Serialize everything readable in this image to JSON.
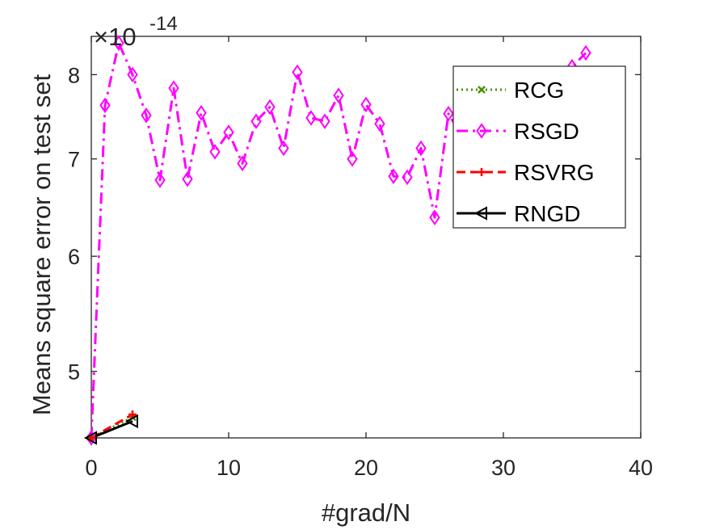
{
  "chart_data": {
    "type": "line",
    "xlabel": "#grad/N",
    "ylabel": "Means square error on test set",
    "y_multiplier_label": "×10",
    "y_multiplier_exponent": "-14",
    "xlim": [
      0,
      40
    ],
    "ylim": [
      4.5,
      8.5
    ],
    "x_ticks": [
      0,
      10,
      20,
      30,
      40
    ],
    "x_tick_labels": [
      "0",
      "10",
      "20",
      "30",
      "40"
    ],
    "y_ticks": [
      5,
      6,
      7,
      8
    ],
    "y_tick_labels": [
      "5",
      "6",
      "7",
      "8"
    ],
    "y_scale": "log",
    "grid": false,
    "legend_position": "top-right",
    "series": [
      {
        "name": "RCG",
        "color": "#4d8f00",
        "line_style": "dotted",
        "marker": "x",
        "x": [
          0,
          3
        ],
        "y": [
          4.5,
          4.65
        ]
      },
      {
        "name": "RSGD",
        "color": "#ff00ff",
        "line_style": "dashdot",
        "marker": "diamond",
        "x": [
          0,
          1,
          2,
          3,
          4,
          5,
          6,
          7,
          8,
          9,
          10,
          11,
          12,
          13,
          14,
          15,
          16,
          17,
          18,
          19,
          20,
          21,
          22,
          23,
          24,
          25,
          26,
          27,
          28,
          29,
          30,
          31,
          32,
          33,
          34,
          35,
          36
        ],
        "y": [
          4.5,
          7.62,
          8.41,
          8.0,
          7.5,
          6.77,
          7.83,
          6.78,
          7.53,
          7.08,
          7.3,
          6.95,
          7.43,
          7.6,
          7.12,
          8.03,
          7.47,
          7.43,
          7.74,
          7.0,
          7.63,
          7.4,
          6.81,
          6.8,
          7.12,
          6.38,
          7.52,
          7.25,
          7.5,
          7.55,
          7.6,
          7.7,
          7.8,
          7.9,
          8.0,
          8.1,
          8.28
        ]
      },
      {
        "name": "RSVRG",
        "color": "#ff0000",
        "line_style": "dashed",
        "marker": "plus",
        "x": [
          0,
          3
        ],
        "y": [
          4.5,
          4.67
        ]
      },
      {
        "name": "RNGD",
        "color": "#000000",
        "line_style": "solid",
        "marker": "triangle-left",
        "x": [
          0,
          3
        ],
        "y": [
          4.5,
          4.62
        ]
      }
    ]
  }
}
